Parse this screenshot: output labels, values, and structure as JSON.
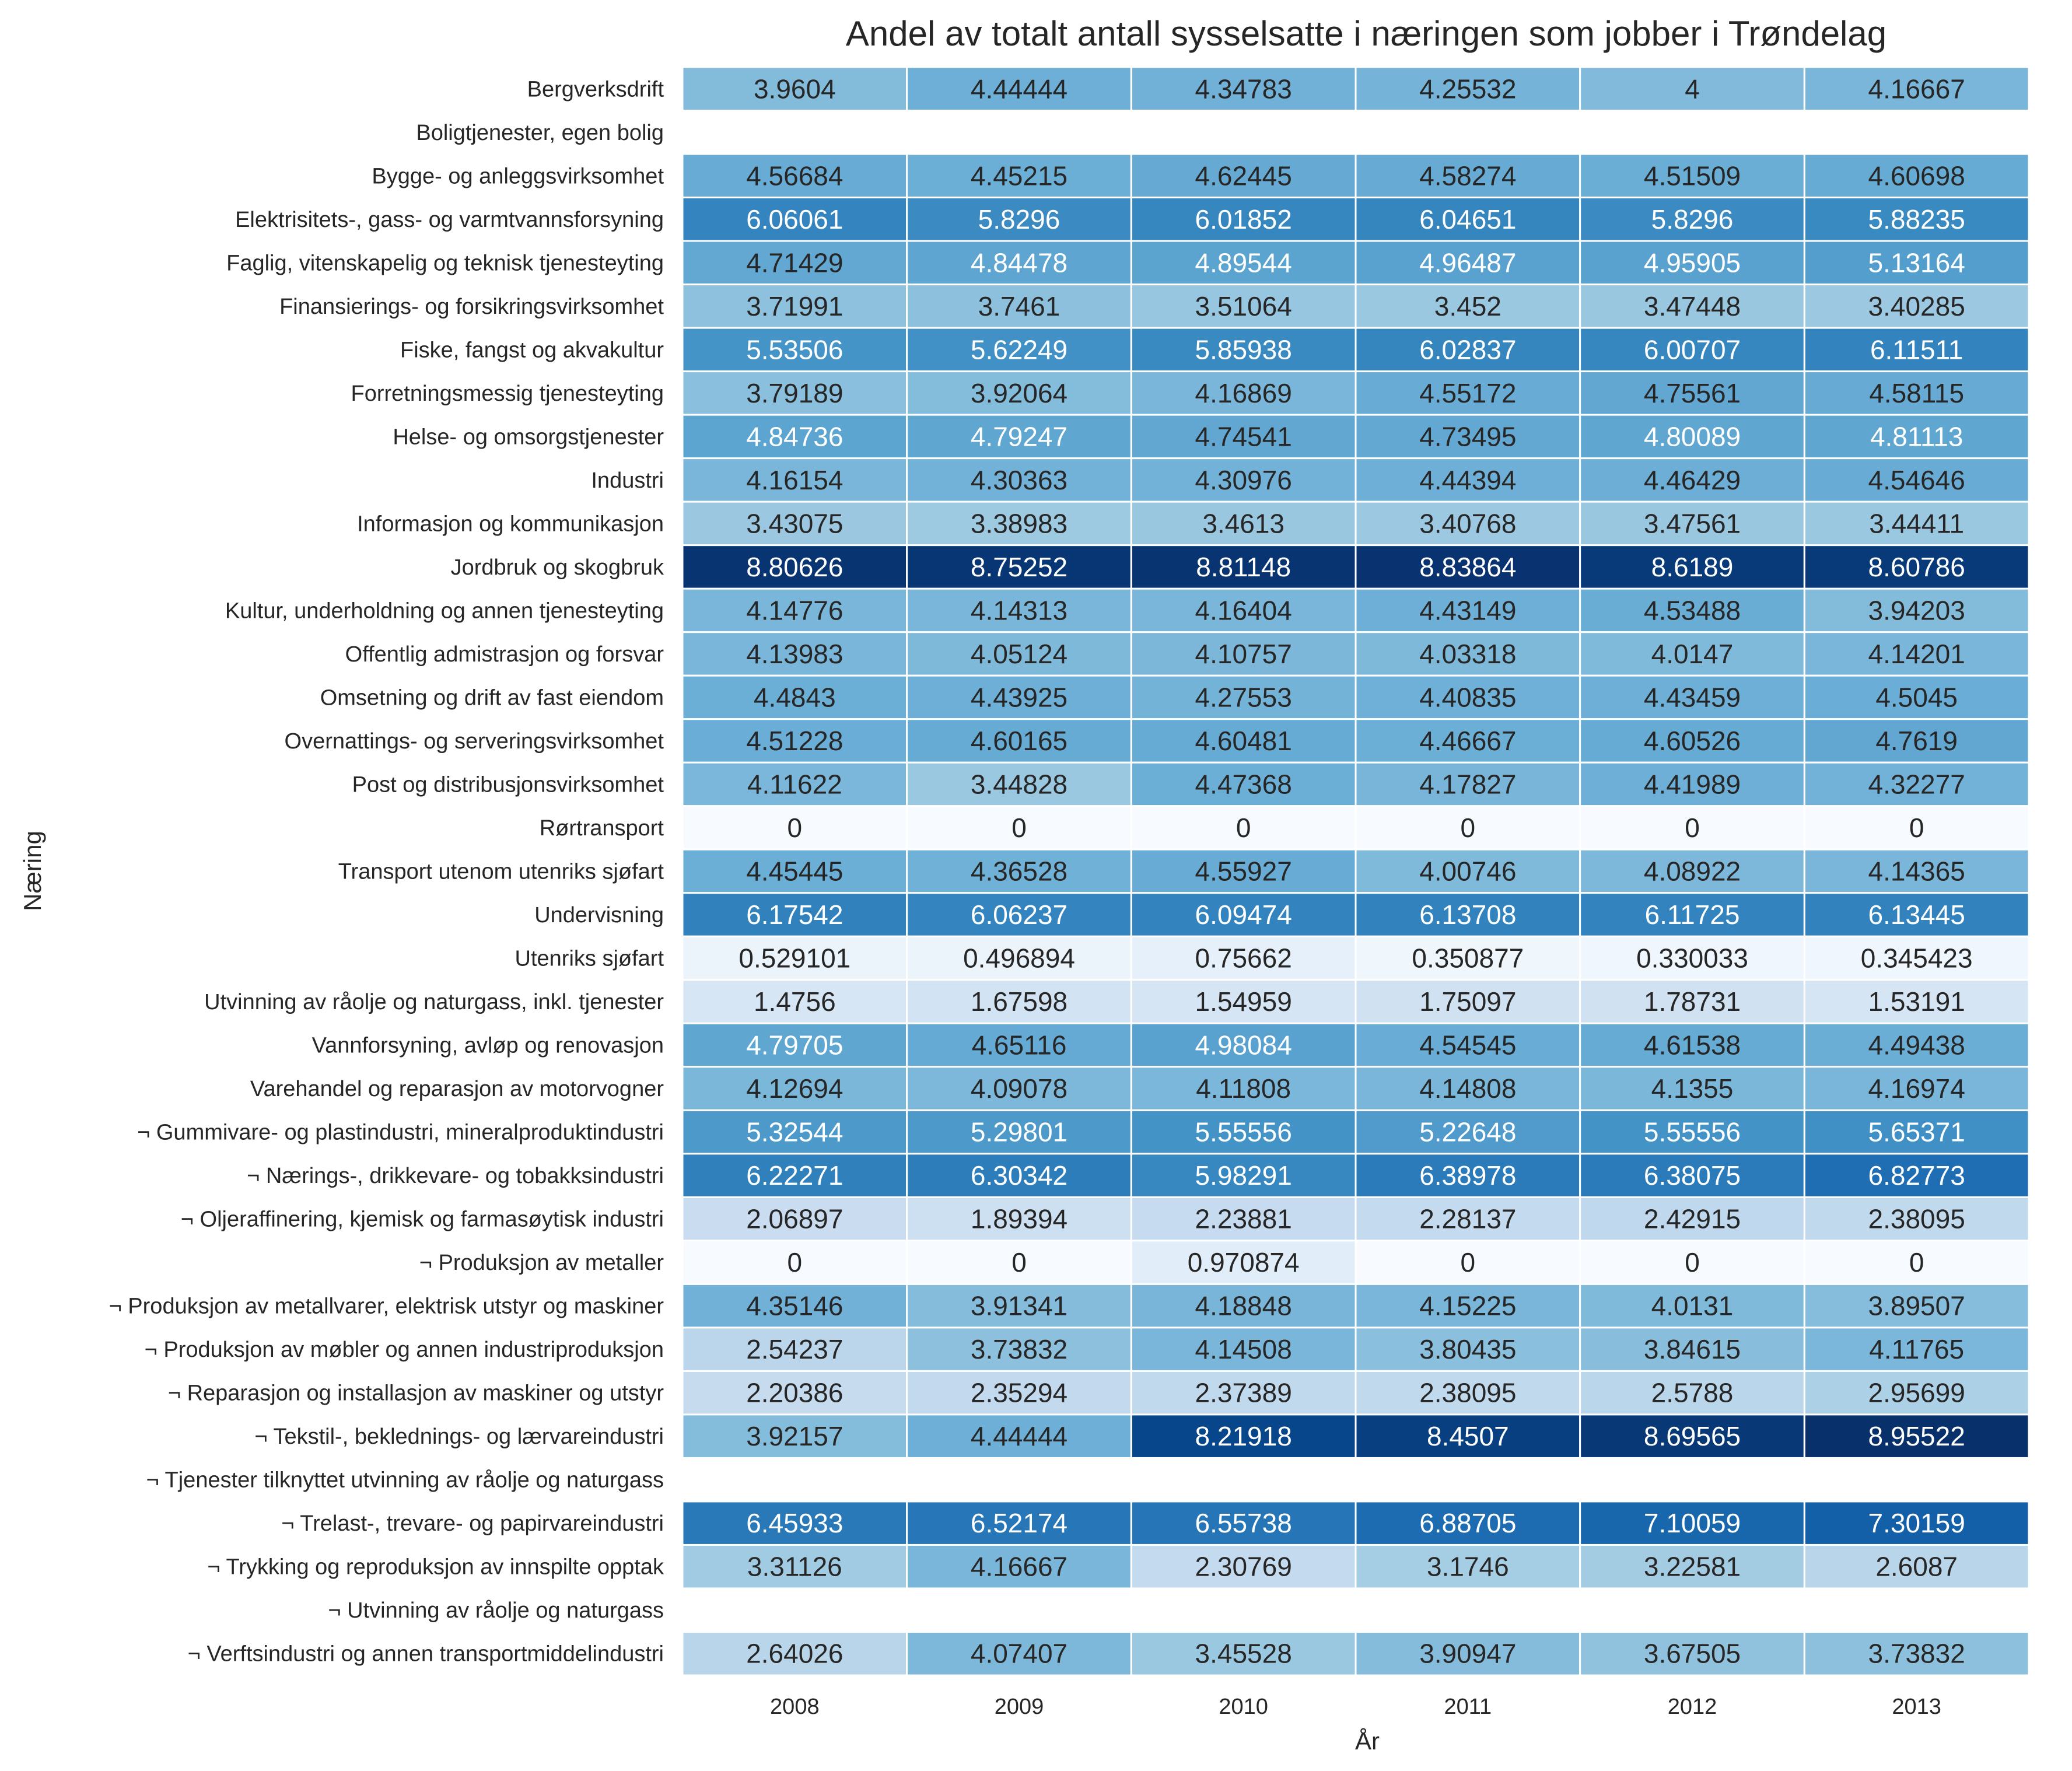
{
  "chart_data": {
    "type": "heatmap",
    "title": "Andel av totalt antall sysselsatte i næringen som jobber i Trøndelag",
    "xlabel": "År",
    "ylabel": "Næring",
    "columns": [
      "2008",
      "2009",
      "2010",
      "2011",
      "2012",
      "2013"
    ],
    "colormap": "Blues",
    "vmin": 0,
    "vmax": 8.95522,
    "rows": [
      {
        "label": "Bergverksdrift",
        "values": [
          3.9604,
          4.44444,
          4.34783,
          4.25532,
          4,
          4.16667
        ],
        "display": [
          "3.9604",
          "4.44444",
          "4.34783",
          "4.25532",
          "4",
          "4.16667"
        ]
      },
      {
        "label": "Boligtjenester, egen bolig",
        "values": [
          null,
          null,
          null,
          null,
          null,
          null
        ],
        "display": [
          "",
          "",
          "",
          "",
          "",
          ""
        ]
      },
      {
        "label": "Bygge- og anleggsvirksomhet",
        "values": [
          4.56684,
          4.45215,
          4.62445,
          4.58274,
          4.51509,
          4.60698
        ],
        "display": [
          "4.56684",
          "4.45215",
          "4.62445",
          "4.58274",
          "4.51509",
          "4.60698"
        ]
      },
      {
        "label": "Elektrisitets-, gass- og varmtvannsforsyning",
        "values": [
          6.06061,
          5.8296,
          6.01852,
          6.04651,
          5.8296,
          5.88235
        ],
        "display": [
          "6.06061",
          "5.8296",
          "6.01852",
          "6.04651",
          "5.8296",
          "5.88235"
        ]
      },
      {
        "label": "Faglig, vitenskapelig og teknisk tjenesteyting",
        "values": [
          4.71429,
          4.84478,
          4.89544,
          4.96487,
          4.95905,
          5.13164
        ],
        "display": [
          "4.71429",
          "4.84478",
          "4.89544",
          "4.96487",
          "4.95905",
          "5.13164"
        ]
      },
      {
        "label": "Finansierings- og forsikringsvirksomhet",
        "values": [
          3.71991,
          3.7461,
          3.51064,
          3.452,
          3.47448,
          3.40285
        ],
        "display": [
          "3.71991",
          "3.7461",
          "3.51064",
          "3.452",
          "3.47448",
          "3.40285"
        ]
      },
      {
        "label": "Fiske, fangst og akvakultur",
        "values": [
          5.53506,
          5.62249,
          5.85938,
          6.02837,
          6.00707,
          6.11511
        ],
        "display": [
          "5.53506",
          "5.62249",
          "5.85938",
          "6.02837",
          "6.00707",
          "6.11511"
        ]
      },
      {
        "label": "Forretningsmessig tjenesteyting",
        "values": [
          3.79189,
          3.92064,
          4.16869,
          4.55172,
          4.75561,
          4.58115
        ],
        "display": [
          "3.79189",
          "3.92064",
          "4.16869",
          "4.55172",
          "4.75561",
          "4.58115"
        ]
      },
      {
        "label": "Helse- og omsorgstjenester",
        "values": [
          4.84736,
          4.79247,
          4.74541,
          4.73495,
          4.80089,
          4.81113
        ],
        "display": [
          "4.84736",
          "4.79247",
          "4.74541",
          "4.73495",
          "4.80089",
          "4.81113"
        ]
      },
      {
        "label": "Industri",
        "values": [
          4.16154,
          4.30363,
          4.30976,
          4.44394,
          4.46429,
          4.54646
        ],
        "display": [
          "4.16154",
          "4.30363",
          "4.30976",
          "4.44394",
          "4.46429",
          "4.54646"
        ]
      },
      {
        "label": "Informasjon og kommunikasjon",
        "values": [
          3.43075,
          3.38983,
          3.4613,
          3.40768,
          3.47561,
          3.44411
        ],
        "display": [
          "3.43075",
          "3.38983",
          "3.4613",
          "3.40768",
          "3.47561",
          "3.44411"
        ]
      },
      {
        "label": "Jordbruk og skogbruk",
        "values": [
          8.80626,
          8.75252,
          8.81148,
          8.83864,
          8.6189,
          8.60786
        ],
        "display": [
          "8.80626",
          "8.75252",
          "8.81148",
          "8.83864",
          "8.6189",
          "8.60786"
        ]
      },
      {
        "label": "Kultur, underholdning og annen tjenesteyting",
        "values": [
          4.14776,
          4.14313,
          4.16404,
          4.43149,
          4.53488,
          3.94203
        ],
        "display": [
          "4.14776",
          "4.14313",
          "4.16404",
          "4.43149",
          "4.53488",
          "3.94203"
        ]
      },
      {
        "label": "Offentlig admistrasjon og forsvar",
        "values": [
          4.13983,
          4.05124,
          4.10757,
          4.03318,
          4.0147,
          4.14201
        ],
        "display": [
          "4.13983",
          "4.05124",
          "4.10757",
          "4.03318",
          "4.0147",
          "4.14201"
        ]
      },
      {
        "label": "Omsetning og drift av fast eiendom",
        "values": [
          4.4843,
          4.43925,
          4.27553,
          4.40835,
          4.43459,
          4.5045
        ],
        "display": [
          "4.4843",
          "4.43925",
          "4.27553",
          "4.40835",
          "4.43459",
          "4.5045"
        ]
      },
      {
        "label": "Overnattings- og serveringsvirksomhet",
        "values": [
          4.51228,
          4.60165,
          4.60481,
          4.46667,
          4.60526,
          4.7619
        ],
        "display": [
          "4.51228",
          "4.60165",
          "4.60481",
          "4.46667",
          "4.60526",
          "4.7619"
        ]
      },
      {
        "label": "Post og distribusjonsvirksomhet",
        "values": [
          4.11622,
          3.44828,
          4.47368,
          4.17827,
          4.41989,
          4.32277
        ],
        "display": [
          "4.11622",
          "3.44828",
          "4.47368",
          "4.17827",
          "4.41989",
          "4.32277"
        ]
      },
      {
        "label": "Rørtransport",
        "values": [
          0,
          0,
          0,
          0,
          0,
          0
        ],
        "display": [
          "0",
          "0",
          "0",
          "0",
          "0",
          "0"
        ]
      },
      {
        "label": "Transport utenom utenriks sjøfart",
        "values": [
          4.45445,
          4.36528,
          4.55927,
          4.00746,
          4.08922,
          4.14365
        ],
        "display": [
          "4.45445",
          "4.36528",
          "4.55927",
          "4.00746",
          "4.08922",
          "4.14365"
        ]
      },
      {
        "label": "Undervisning",
        "values": [
          6.17542,
          6.06237,
          6.09474,
          6.13708,
          6.11725,
          6.13445
        ],
        "display": [
          "6.17542",
          "6.06237",
          "6.09474",
          "6.13708",
          "6.11725",
          "6.13445"
        ]
      },
      {
        "label": "Utenriks sjøfart",
        "values": [
          0.529101,
          0.496894,
          0.75662,
          0.350877,
          0.330033,
          0.345423
        ],
        "display": [
          "0.529101",
          "0.496894",
          "0.75662",
          "0.350877",
          "0.330033",
          "0.345423"
        ]
      },
      {
        "label": "Utvinning av råolje og naturgass, inkl. tjenester",
        "values": [
          1.4756,
          1.67598,
          1.54959,
          1.75097,
          1.78731,
          1.53191
        ],
        "display": [
          "1.4756",
          "1.67598",
          "1.54959",
          "1.75097",
          "1.78731",
          "1.53191"
        ]
      },
      {
        "label": "Vannforsyning, avløp og renovasjon",
        "values": [
          4.79705,
          4.65116,
          4.98084,
          4.54545,
          4.61538,
          4.49438
        ],
        "display": [
          "4.79705",
          "4.65116",
          "4.98084",
          "4.54545",
          "4.61538",
          "4.49438"
        ]
      },
      {
        "label": "Varehandel og reparasjon av motorvogner",
        "values": [
          4.12694,
          4.09078,
          4.11808,
          4.14808,
          4.1355,
          4.16974
        ],
        "display": [
          "4.12694",
          "4.09078",
          "4.11808",
          "4.14808",
          "4.1355",
          "4.16974"
        ]
      },
      {
        "label": "¬ Gummivare- og plastindustri, mineralproduktindustri",
        "values": [
          5.32544,
          5.29801,
          5.55556,
          5.22648,
          5.55556,
          5.65371
        ],
        "display": [
          "5.32544",
          "5.29801",
          "5.55556",
          "5.22648",
          "5.55556",
          "5.65371"
        ]
      },
      {
        "label": "¬ Nærings-, drikkevare- og tobakksindustri",
        "values": [
          6.22271,
          6.30342,
          5.98291,
          6.38978,
          6.38075,
          6.82773
        ],
        "display": [
          "6.22271",
          "6.30342",
          "5.98291",
          "6.38978",
          "6.38075",
          "6.82773"
        ]
      },
      {
        "label": "¬ Oljeraffinering, kjemisk og farmasøytisk industri",
        "values": [
          2.06897,
          1.89394,
          2.23881,
          2.28137,
          2.42915,
          2.38095
        ],
        "display": [
          "2.06897",
          "1.89394",
          "2.23881",
          "2.28137",
          "2.42915",
          "2.38095"
        ]
      },
      {
        "label": "¬ Produksjon av metaller",
        "values": [
          0,
          0,
          0.970874,
          0,
          0,
          0
        ],
        "display": [
          "0",
          "0",
          "0.970874",
          "0",
          "0",
          "0"
        ]
      },
      {
        "label": "¬ Produksjon av metallvarer, elektrisk utstyr og maskiner",
        "values": [
          4.35146,
          3.91341,
          4.18848,
          4.15225,
          4.0131,
          3.89507
        ],
        "display": [
          "4.35146",
          "3.91341",
          "4.18848",
          "4.15225",
          "4.0131",
          "3.89507"
        ]
      },
      {
        "label": "¬ Produksjon av møbler og annen industriproduksjon",
        "values": [
          2.54237,
          3.73832,
          4.14508,
          3.80435,
          3.84615,
          4.11765
        ],
        "display": [
          "2.54237",
          "3.73832",
          "4.14508",
          "3.80435",
          "3.84615",
          "4.11765"
        ]
      },
      {
        "label": "¬ Reparasjon og installasjon av maskiner og utstyr",
        "values": [
          2.20386,
          2.35294,
          2.37389,
          2.38095,
          2.5788,
          2.95699
        ],
        "display": [
          "2.20386",
          "2.35294",
          "2.37389",
          "2.38095",
          "2.5788",
          "2.95699"
        ]
      },
      {
        "label": "¬ Tekstil-, beklednings- og lærvareindustri",
        "values": [
          3.92157,
          4.44444,
          8.21918,
          8.4507,
          8.69565,
          8.95522
        ],
        "display": [
          "3.92157",
          "4.44444",
          "8.21918",
          "8.4507",
          "8.69565",
          "8.95522"
        ]
      },
      {
        "label": "¬ Tjenester tilknyttet utvinning av råolje og naturgass",
        "values": [
          null,
          null,
          null,
          null,
          null,
          null
        ],
        "display": [
          "",
          "",
          "",
          "",
          "",
          ""
        ]
      },
      {
        "label": "¬ Trelast-, trevare- og papirvareindustri",
        "values": [
          6.45933,
          6.52174,
          6.55738,
          6.88705,
          7.10059,
          7.30159
        ],
        "display": [
          "6.45933",
          "6.52174",
          "6.55738",
          "6.88705",
          "7.10059",
          "7.30159"
        ]
      },
      {
        "label": "¬ Trykking og reproduksjon av innspilte opptak",
        "values": [
          3.31126,
          4.16667,
          2.30769,
          3.1746,
          3.22581,
          2.6087
        ],
        "display": [
          "3.31126",
          "4.16667",
          "2.30769",
          "3.1746",
          "3.22581",
          "2.6087"
        ]
      },
      {
        "label": "¬ Utvinning av råolje og naturgass",
        "values": [
          null,
          null,
          null,
          null,
          null,
          null
        ],
        "display": [
          "",
          "",
          "",
          "",
          "",
          ""
        ]
      },
      {
        "label": "¬ Verftsindustri og annen transportmiddelindustri",
        "values": [
          2.64026,
          4.07407,
          3.45528,
          3.90947,
          3.67505,
          3.73832
        ],
        "display": [
          "2.64026",
          "4.07407",
          "3.45528",
          "3.90947",
          "3.67505",
          "3.73832"
        ]
      }
    ]
  }
}
